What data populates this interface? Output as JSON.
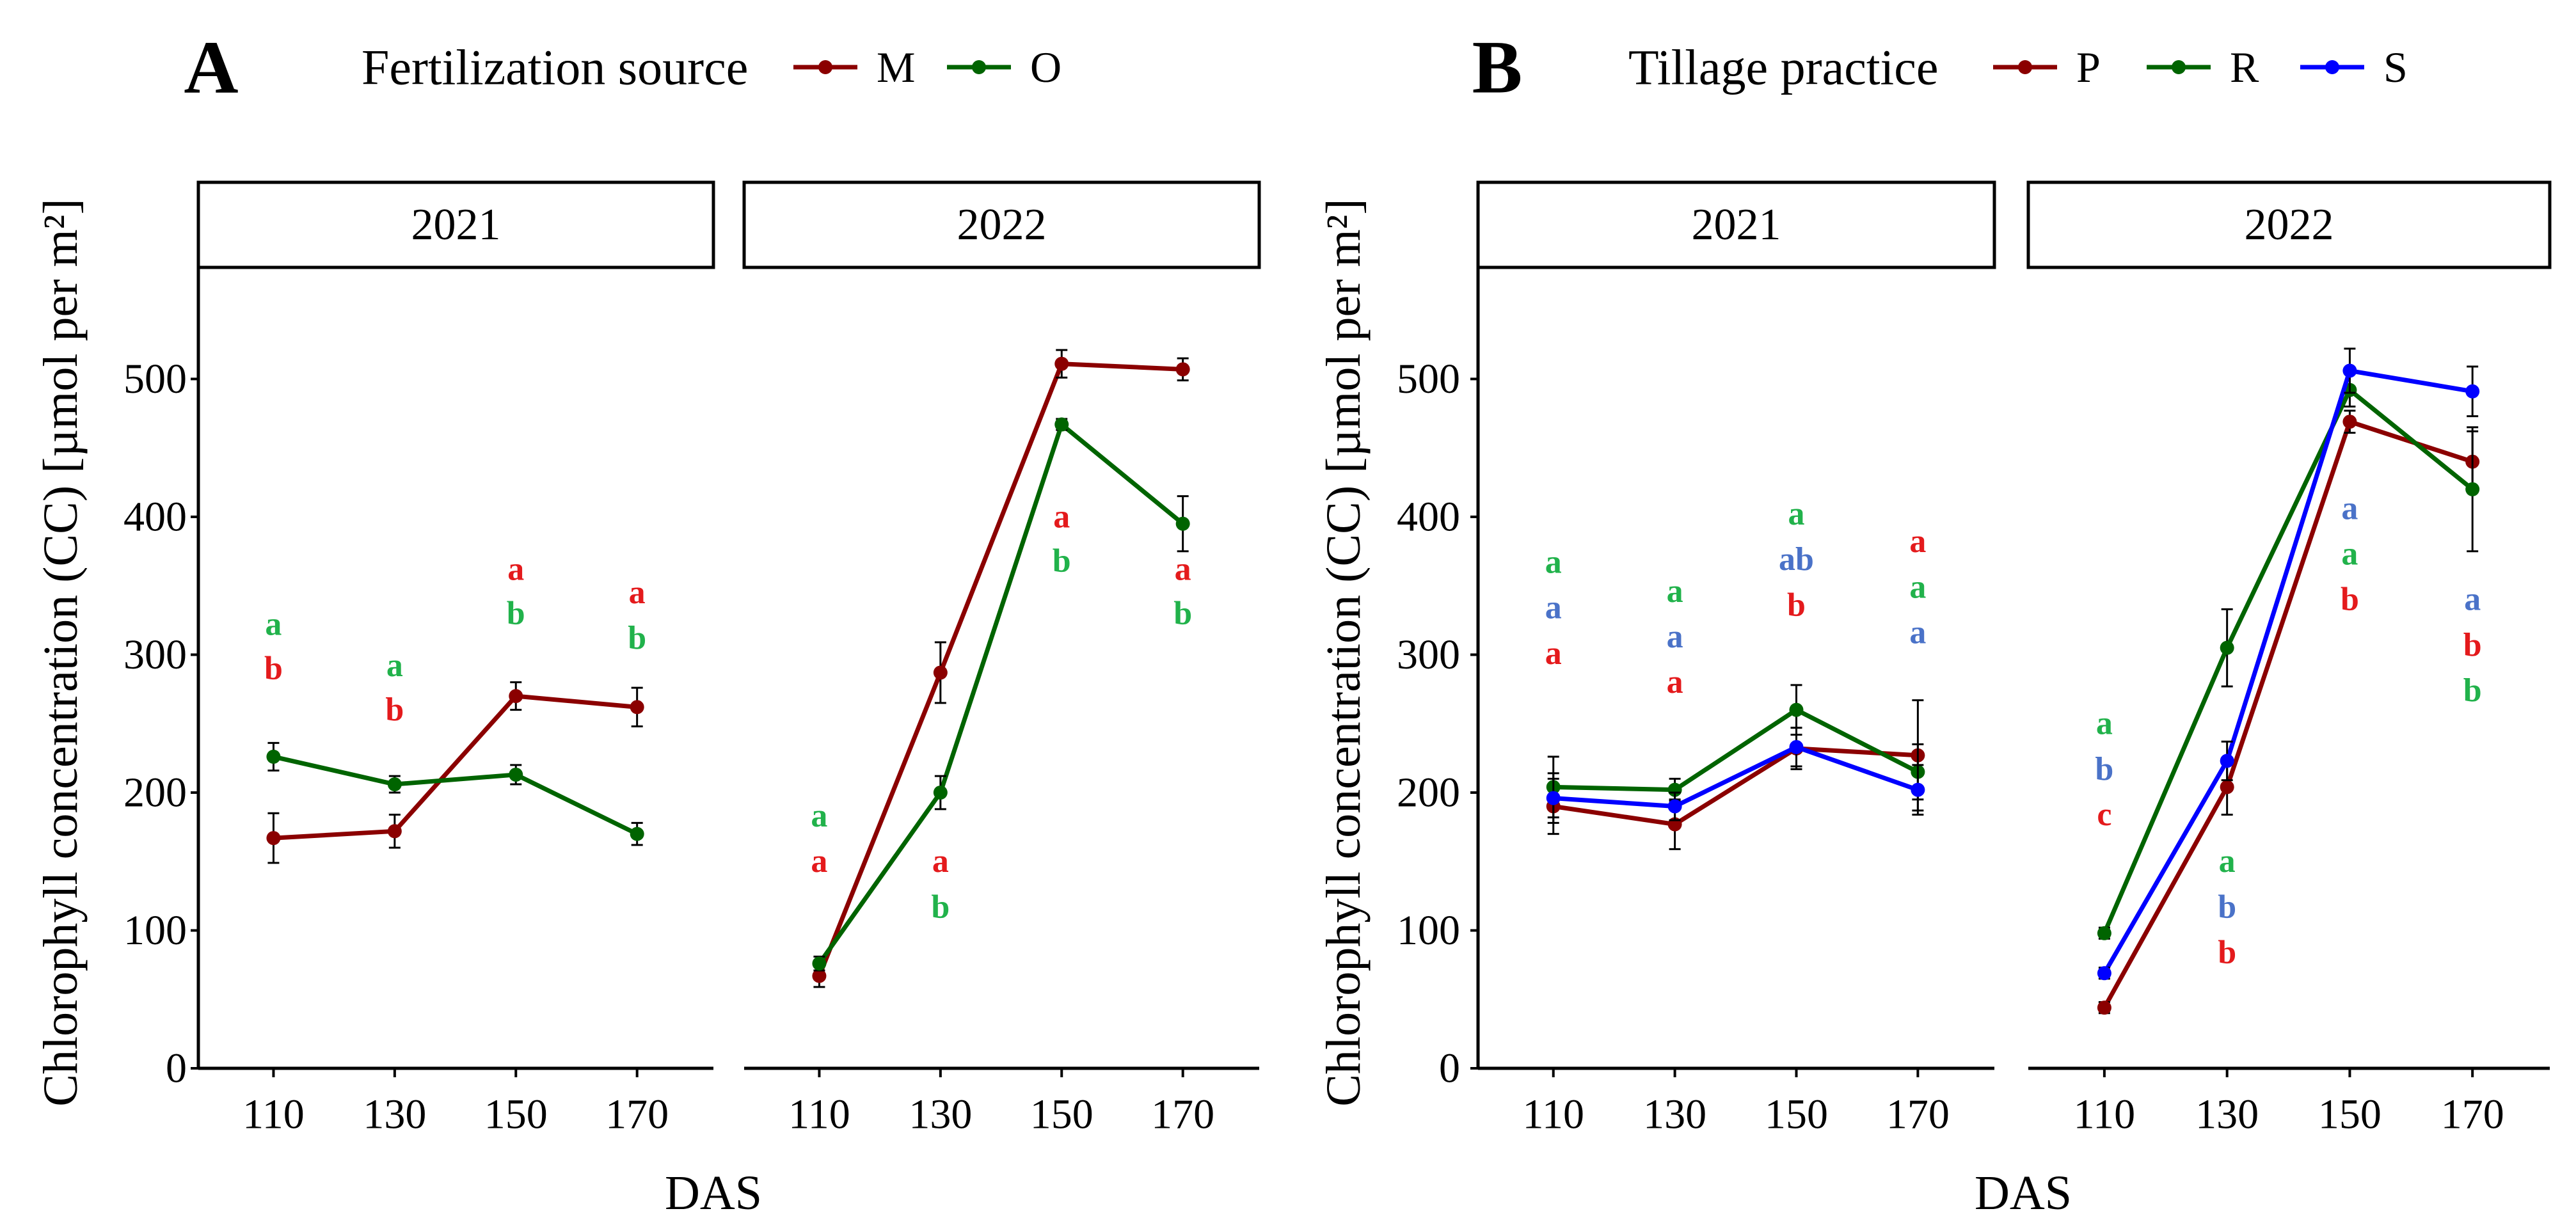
{
  "colors": {
    "M": "#8b0000",
    "O": "#006400",
    "P": "#8b0000",
    "R": "#006400",
    "S": "#0000ff",
    "letter_red": "#e41a1c",
    "letter_green": "#21b24b",
    "letter_blue": "#4a72c8",
    "axis": "#000000"
  },
  "chart_data": [
    {
      "type": "line",
      "panel_label": "A",
      "legend_title": "Fertilization source",
      "ylabel": "Chlorophyll concentration (CC) [µmol per m²]",
      "xlabel": "DAS",
      "ylim": [
        0,
        580
      ],
      "yticks": [
        "0",
        "100",
        "200",
        "300",
        "400",
        "500"
      ],
      "ytick_values": [
        0,
        100,
        200,
        300,
        400,
        500
      ],
      "x": [
        "110",
        "130",
        "150",
        "170"
      ],
      "facets": [
        {
          "label": "2021",
          "series": [
            {
              "name": "M",
              "values": [
                167,
                172,
                270,
                262
              ],
              "err": [
                18,
                12,
                10,
                14
              ]
            },
            {
              "name": "O",
              "values": [
                226,
                206,
                213,
                170
              ],
              "err": [
                10,
                6,
                7,
                8
              ]
            }
          ],
          "letters": [
            {
              "x": "110",
              "items": [
                {
                  "text": "a",
                  "color": "letter_green",
                  "y": 322
                },
                {
                  "text": "b",
                  "color": "letter_red",
                  "y": 290
                }
              ]
            },
            {
              "x": "130",
              "items": [
                {
                  "text": "a",
                  "color": "letter_green",
                  "y": 292
                },
                {
                  "text": "b",
                  "color": "letter_red",
                  "y": 260
                }
              ]
            },
            {
              "x": "150",
              "items": [
                {
                  "text": "a",
                  "color": "letter_red",
                  "y": 362
                },
                {
                  "text": "b",
                  "color": "letter_green",
                  "y": 330
                }
              ]
            },
            {
              "x": "170",
              "items": [
                {
                  "text": "a",
                  "color": "letter_red",
                  "y": 345
                },
                {
                  "text": "b",
                  "color": "letter_green",
                  "y": 312
                }
              ]
            }
          ]
        },
        {
          "label": "2022",
          "series": [
            {
              "name": "M",
              "values": [
                67,
                287,
                511,
                507
              ],
              "err": [
                8,
                22,
                10,
                8
              ]
            },
            {
              "name": "O",
              "values": [
                76,
                200,
                467,
                395
              ],
              "err": [
                5,
                12,
                4,
                20
              ]
            }
          ],
          "letters": [
            {
              "x": "110",
              "items": [
                {
                  "text": "a",
                  "color": "letter_green",
                  "y": 183
                },
                {
                  "text": "a",
                  "color": "letter_red",
                  "y": 150
                }
              ]
            },
            {
              "x": "130",
              "items": [
                {
                  "text": "a",
                  "color": "letter_red",
                  "y": 150
                },
                {
                  "text": "b",
                  "color": "letter_green",
                  "y": 117
                }
              ]
            },
            {
              "x": "150",
              "items": [
                {
                  "text": "a",
                  "color": "letter_red",
                  "y": 400
                },
                {
                  "text": "b",
                  "color": "letter_green",
                  "y": 368
                }
              ]
            },
            {
              "x": "170",
              "items": [
                {
                  "text": "a",
                  "color": "letter_red",
                  "y": 362
                },
                {
                  "text": "b",
                  "color": "letter_green",
                  "y": 330
                }
              ]
            }
          ]
        }
      ]
    },
    {
      "type": "line",
      "panel_label": "B",
      "legend_title": "Tillage practice",
      "ylabel": "Chlorophyll concentration (CC) [µmol per m²]",
      "xlabel": "DAS",
      "ylim": [
        0,
        580
      ],
      "yticks": [
        "0",
        "100",
        "200",
        "300",
        "400",
        "500"
      ],
      "ytick_values": [
        0,
        100,
        200,
        300,
        400,
        500
      ],
      "x": [
        "110",
        "130",
        "150",
        "170"
      ],
      "facets": [
        {
          "label": "2021",
          "series": [
            {
              "name": "P",
              "values": [
                190,
                177,
                232,
                227
              ],
              "err": [
                20,
                18,
                15,
                40
              ]
            },
            {
              "name": "R",
              "values": [
                204,
                202,
                260,
                215
              ],
              "err": [
                22,
                8,
                18,
                20
              ]
            },
            {
              "name": "S",
              "values": [
                196,
                190,
                233,
                202
              ],
              "err": [
                18,
                10,
                14,
                18
              ]
            }
          ],
          "letters": [
            {
              "x": "110",
              "items": [
                {
                  "text": "a",
                  "color": "letter_green",
                  "y": 367
                },
                {
                  "text": "a",
                  "color": "letter_blue",
                  "y": 334
                },
                {
                  "text": "a",
                  "color": "letter_red",
                  "y": 301
                }
              ]
            },
            {
              "x": "130",
              "items": [
                {
                  "text": "a",
                  "color": "letter_green",
                  "y": 346
                },
                {
                  "text": "a",
                  "color": "letter_blue",
                  "y": 313
                },
                {
                  "text": "a",
                  "color": "letter_red",
                  "y": 280
                }
              ]
            },
            {
              "x": "150",
              "items": [
                {
                  "text": "a",
                  "color": "letter_green",
                  "y": 402
                },
                {
                  "text": "ab",
                  "color": "letter_blue",
                  "y": 369
                },
                {
                  "text": "b",
                  "color": "letter_red",
                  "y": 336
                }
              ]
            },
            {
              "x": "170",
              "items": [
                {
                  "text": "a",
                  "color": "letter_red",
                  "y": 382
                },
                {
                  "text": "a",
                  "color": "letter_green",
                  "y": 349
                },
                {
                  "text": "a",
                  "color": "letter_blue",
                  "y": 316
                }
              ]
            }
          ]
        },
        {
          "label": "2022",
          "series": [
            {
              "name": "P",
              "values": [
                44,
                204,
                469,
                440
              ],
              "err": [
                4,
                20,
                8,
                22
              ]
            },
            {
              "name": "R",
              "values": [
                98,
                305,
                492,
                420
              ],
              "err": [
                4,
                28,
                12,
                45
              ]
            },
            {
              "name": "S",
              "values": [
                69,
                223,
                506,
                491
              ],
              "err": [
                4,
                14,
                16,
                18
              ]
            }
          ],
          "letters": [
            {
              "x": "110",
              "items": [
                {
                  "text": "a",
                  "color": "letter_green",
                  "y": 250
                },
                {
                  "text": "b",
                  "color": "letter_blue",
                  "y": 217
                },
                {
                  "text": "c",
                  "color": "letter_red",
                  "y": 184
                }
              ]
            },
            {
              "x": "130",
              "items": [
                {
                  "text": "a",
                  "color": "letter_green",
                  "y": 150
                },
                {
                  "text": "b",
                  "color": "letter_blue",
                  "y": 117
                },
                {
                  "text": "b",
                  "color": "letter_red",
                  "y": 84
                }
              ]
            },
            {
              "x": "150",
              "items": [
                {
                  "text": "a",
                  "color": "letter_blue",
                  "y": 406
                },
                {
                  "text": "a",
                  "color": "letter_green",
                  "y": 373
                },
                {
                  "text": "b",
                  "color": "letter_red",
                  "y": 340
                }
              ]
            },
            {
              "x": "170",
              "items": [
                {
                  "text": "a",
                  "color": "letter_blue",
                  "y": 340
                },
                {
                  "text": "b",
                  "color": "letter_red",
                  "y": 307
                },
                {
                  "text": "b",
                  "color": "letter_green",
                  "y": 274
                }
              ]
            }
          ]
        }
      ]
    }
  ]
}
